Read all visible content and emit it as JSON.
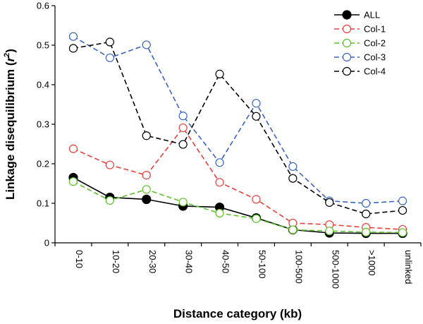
{
  "chart_data": {
    "type": "line",
    "xlabel": "Distance category (kb)",
    "ylabel": "Linkage disequilibrium (r²)",
    "ylabel_parts": {
      "before": "Linkage disequilibrium (",
      "symbol": "r",
      "sup": "2",
      "after": ")"
    },
    "ylim": [
      0,
      0.6
    ],
    "yticks": [
      "0",
      "0.1",
      "0.2",
      "0.3",
      "0.4",
      "0.5",
      "0.6"
    ],
    "categories": [
      "0-10",
      "10-20",
      "20-30",
      "30-40",
      "40-50",
      "50-100",
      "100-500",
      "500-1000",
      ">1000",
      "unlinked"
    ],
    "legend_position": "top-right",
    "series": [
      {
        "name": "ALL",
        "color": "#000000",
        "dash": false,
        "filled": true,
        "values": [
          0.165,
          0.115,
          0.11,
          0.093,
          0.09,
          0.063,
          0.033,
          0.025,
          0.024,
          0.024
        ]
      },
      {
        "name": "Col-1",
        "color": "#e8403a",
        "dash": true,
        "filled": false,
        "values": [
          0.238,
          0.197,
          0.171,
          0.291,
          0.153,
          0.11,
          0.05,
          0.046,
          0.039,
          0.034
        ]
      },
      {
        "name": "Col-2",
        "color": "#5cc22a",
        "dash": true,
        "filled": false,
        "values": [
          0.155,
          0.107,
          0.135,
          0.103,
          0.075,
          0.061,
          0.033,
          0.03,
          0.027,
          0.026
        ]
      },
      {
        "name": "Col-3",
        "color": "#3a64c4",
        "dash": true,
        "filled": false,
        "values": [
          0.522,
          0.468,
          0.501,
          0.321,
          0.203,
          0.353,
          0.193,
          0.106,
          0.1,
          0.106
        ]
      },
      {
        "name": "Col-4",
        "color": "#000000",
        "dash": true,
        "filled": false,
        "values": [
          0.492,
          0.508,
          0.271,
          0.249,
          0.427,
          0.32,
          0.163,
          0.102,
          0.073,
          0.082
        ]
      }
    ]
  }
}
